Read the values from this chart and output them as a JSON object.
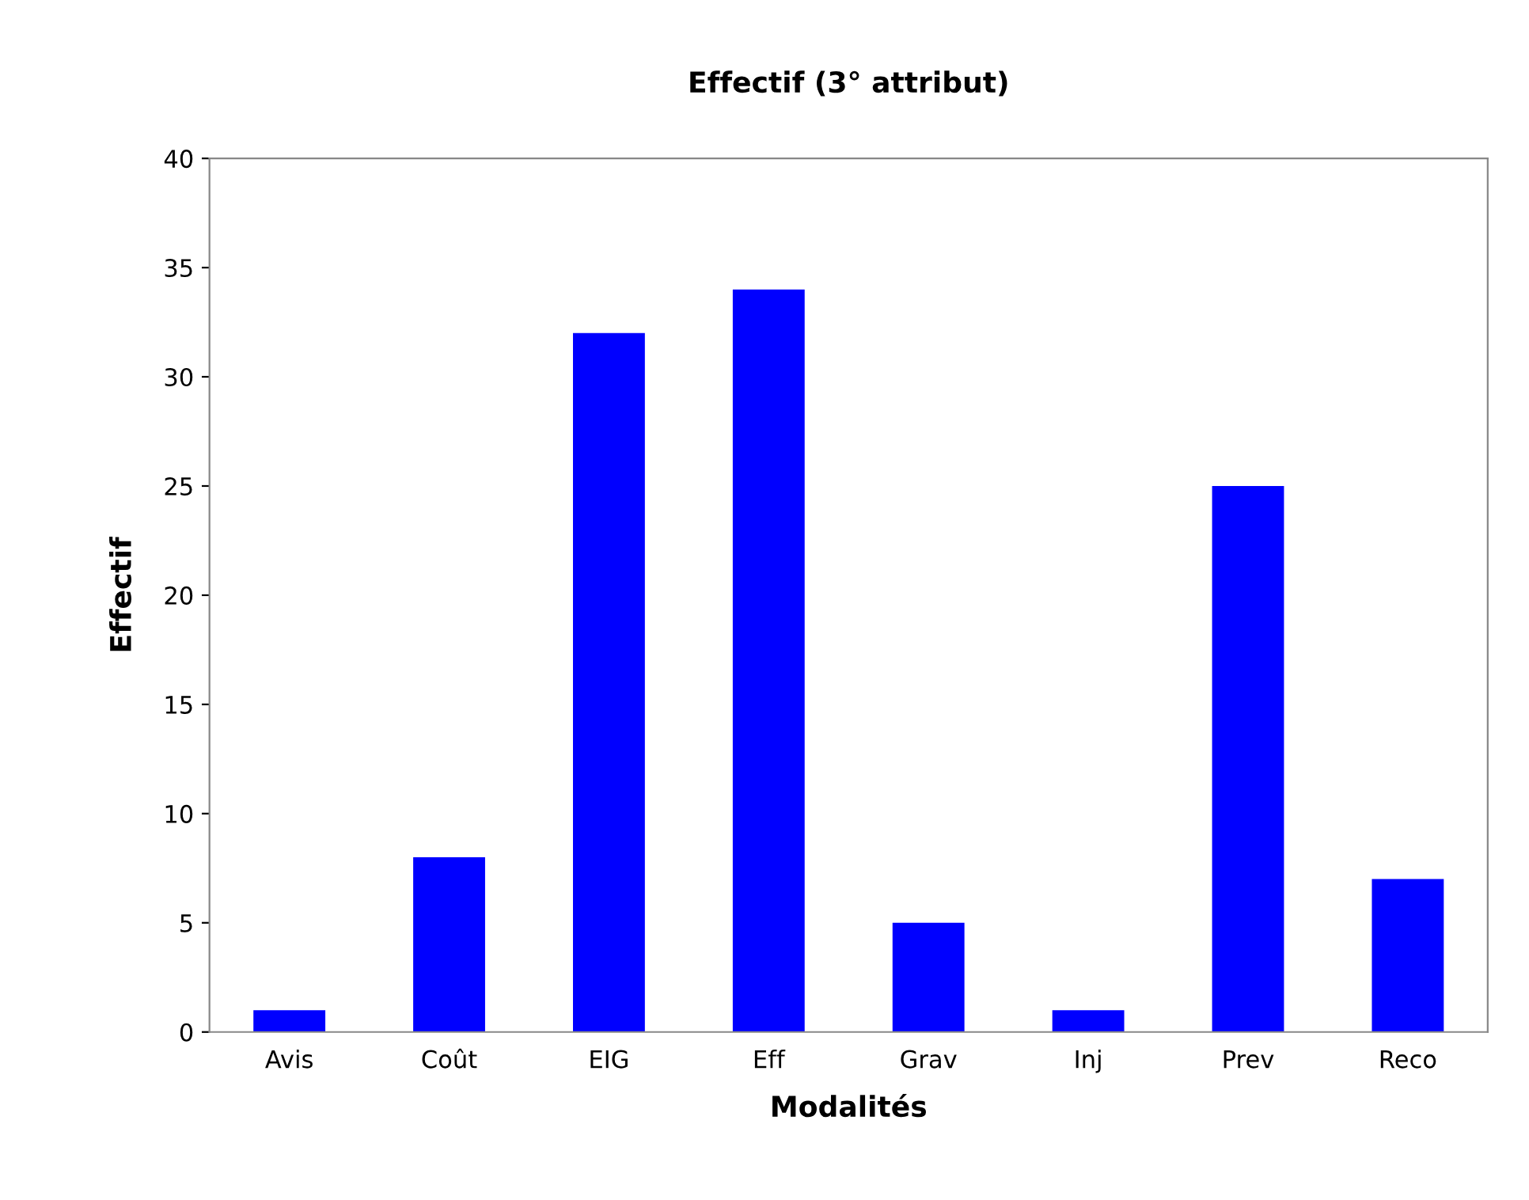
{
  "chart_data": {
    "type": "bar",
    "title": "Effectif (3° attribut)",
    "xlabel": "Modalités",
    "ylabel": "Effectif",
    "categories": [
      "Avis",
      "Coût",
      "EIG",
      "Eff",
      "Grav",
      "Inj",
      "Prev",
      "Reco"
    ],
    "values": [
      1,
      8,
      32,
      34,
      5,
      1,
      25,
      7
    ],
    "color": "#0000ff",
    "ylim": [
      0,
      40
    ],
    "yticks": [
      0,
      5,
      10,
      15,
      20,
      25,
      30,
      35,
      40
    ],
    "grid": false
  }
}
